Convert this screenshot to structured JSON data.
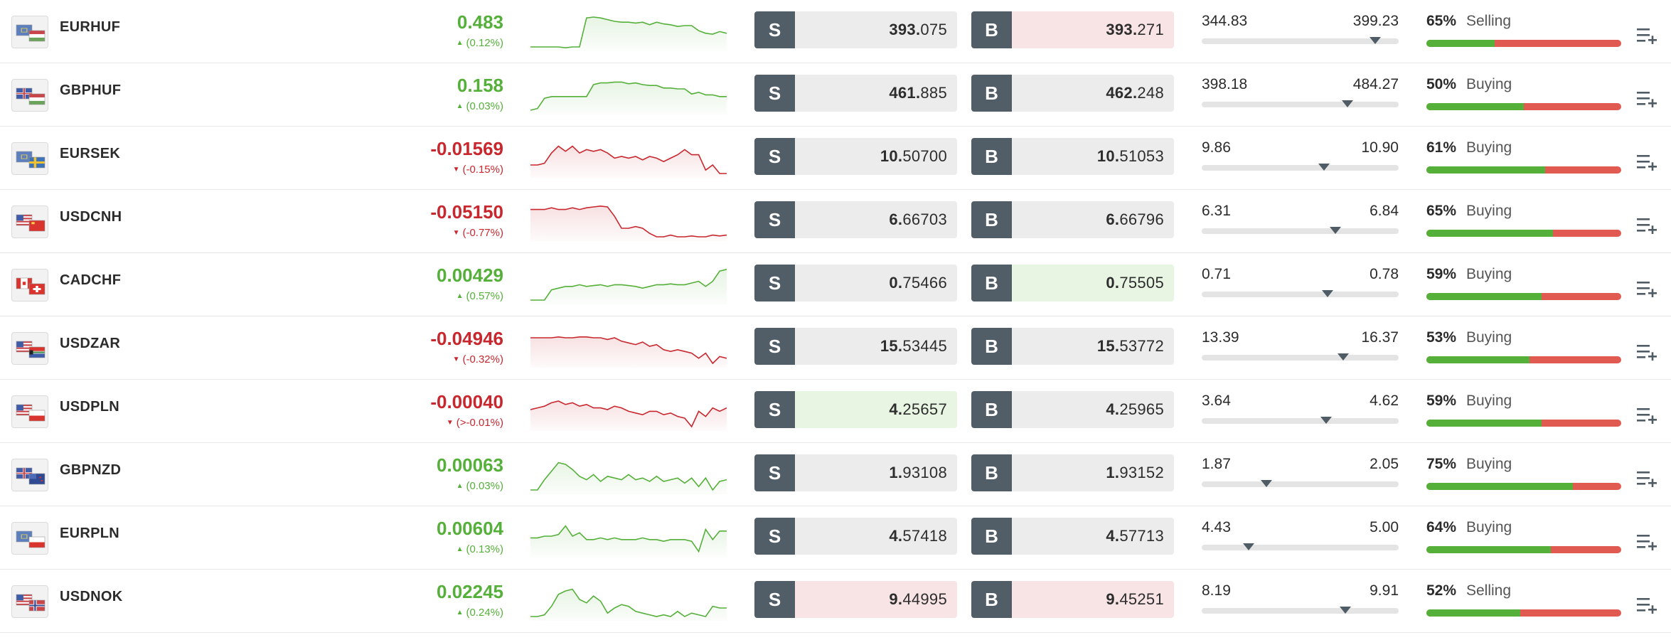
{
  "rows": [
    {
      "symbol": "EURHUF",
      "flags": [
        "eu",
        "hu"
      ],
      "change": "0.483",
      "change_pct": "(0.12%)",
      "direction": "up",
      "spark": [
        40,
        40,
        40,
        40,
        40,
        41,
        40,
        40,
        6,
        5,
        6,
        8,
        10,
        11,
        11,
        12,
        11,
        14,
        11,
        13,
        14,
        16,
        15,
        15,
        21,
        24,
        25,
        22,
        24
      ],
      "sell_label": "S",
      "sell_big": "393.",
      "sell_small": "075",
      "sell_state": "neutral",
      "buy_label": "B",
      "buy_big": "393.",
      "buy_small": "271",
      "buy_state": "down",
      "low": "344.83",
      "high": "399.23",
      "range_pos": 0.88,
      "sentiment_pct": "65%",
      "sentiment_label": "Selling",
      "buying_share": 0.35
    },
    {
      "symbol": "GBPHUF",
      "flags": [
        "gb",
        "hu"
      ],
      "change": "0.158",
      "change_pct": "(0.03%)",
      "direction": "up",
      "spark": [
        40,
        38,
        26,
        24,
        24,
        24,
        24,
        24,
        24,
        10,
        8,
        8,
        7,
        7,
        9,
        8,
        10,
        11,
        11,
        14,
        14,
        15,
        15,
        21,
        19,
        22,
        22,
        24,
        24
      ],
      "sell_label": "S",
      "sell_big": "461.",
      "sell_small": "885",
      "sell_state": "neutral",
      "buy_label": "B",
      "buy_big": "462.",
      "buy_small": "248",
      "buy_state": "neutral",
      "low": "398.18",
      "high": "484.27",
      "range_pos": 0.74,
      "sentiment_pct": "50%",
      "sentiment_label": "Buying",
      "buying_share": 0.5
    },
    {
      "symbol": "EURSEK",
      "flags": [
        "eu",
        "se"
      ],
      "change": "-0.01569",
      "change_pct": "(-0.15%)",
      "direction": "down",
      "spark": [
        30,
        30,
        28,
        16,
        8,
        14,
        8,
        16,
        12,
        14,
        12,
        16,
        22,
        20,
        22,
        20,
        24,
        20,
        22,
        26,
        22,
        18,
        12,
        18,
        18,
        36,
        30,
        40,
        40
      ],
      "sell_label": "S",
      "sell_big": "10.",
      "sell_small": "50700",
      "sell_state": "neutral",
      "buy_label": "B",
      "buy_big": "10.",
      "buy_small": "51053",
      "buy_state": "neutral",
      "low": "9.86",
      "high": "10.90",
      "range_pos": 0.62,
      "sentiment_pct": "61%",
      "sentiment_label": "Buying",
      "buying_share": 0.61
    },
    {
      "symbol": "USDCNH",
      "flags": [
        "us",
        "cn"
      ],
      "change": "-0.05150",
      "change_pct": "(-0.77%)",
      "direction": "down",
      "spark": [
        8,
        8,
        8,
        6,
        8,
        8,
        6,
        8,
        6,
        5,
        4,
        5,
        16,
        30,
        30,
        28,
        30,
        36,
        40,
        40,
        38,
        40,
        40,
        39,
        40,
        40,
        38,
        39,
        38
      ],
      "sell_label": "S",
      "sell_big": "6.",
      "sell_small": "66703",
      "sell_state": "neutral",
      "buy_label": "B",
      "buy_big": "6.",
      "buy_small": "66796",
      "buy_state": "neutral",
      "low": "6.31",
      "high": "6.84",
      "range_pos": 0.68,
      "sentiment_pct": "65%",
      "sentiment_label": "Buying",
      "buying_share": 0.65
    },
    {
      "symbol": "CADCHF",
      "flags": [
        "ca",
        "ch"
      ],
      "change": "0.00429",
      "change_pct": "(0.57%)",
      "direction": "up",
      "spark": [
        40,
        40,
        40,
        28,
        26,
        24,
        24,
        22,
        24,
        23,
        22,
        24,
        22,
        22,
        23,
        24,
        26,
        24,
        22,
        22,
        21,
        22,
        22,
        20,
        18,
        24,
        18,
        6,
        4
      ],
      "sell_label": "S",
      "sell_big": "0.",
      "sell_small": "75466",
      "sell_state": "neutral",
      "buy_label": "B",
      "buy_big": "0.",
      "buy_small": "75505",
      "buy_state": "up",
      "low": "0.71",
      "high": "0.78",
      "range_pos": 0.64,
      "sentiment_pct": "59%",
      "sentiment_label": "Buying",
      "buying_share": 0.59
    },
    {
      "symbol": "USDZAR",
      "flags": [
        "us",
        "za"
      ],
      "change": "-0.04946",
      "change_pct": "(-0.32%)",
      "direction": "down",
      "spark": [
        10,
        10,
        10,
        10,
        9,
        10,
        10,
        9,
        9,
        10,
        10,
        12,
        10,
        14,
        16,
        18,
        15,
        20,
        18,
        24,
        26,
        24,
        26,
        28,
        34,
        28,
        40,
        32,
        34
      ],
      "sell_label": "S",
      "sell_big": "15.",
      "sell_small": "53445",
      "sell_state": "neutral",
      "buy_label": "B",
      "buy_big": "15.",
      "buy_small": "53772",
      "buy_state": "neutral",
      "low": "13.39",
      "high": "16.37",
      "range_pos": 0.72,
      "sentiment_pct": "53%",
      "sentiment_label": "Buying",
      "buying_share": 0.53
    },
    {
      "symbol": "USDPLN",
      "flags": [
        "us",
        "pl"
      ],
      "change": "-0.00040",
      "change_pct": "(>-0.01%)",
      "direction": "down",
      "spark": [
        20,
        18,
        16,
        12,
        10,
        14,
        12,
        16,
        14,
        18,
        18,
        20,
        16,
        18,
        22,
        24,
        26,
        22,
        22,
        26,
        24,
        28,
        30,
        40,
        22,
        28,
        18,
        22,
        18
      ],
      "sell_label": "S",
      "sell_big": "4.",
      "sell_small": "25657",
      "sell_state": "up",
      "buy_label": "B",
      "buy_big": "4.",
      "buy_small": "25965",
      "buy_state": "neutral",
      "low": "3.64",
      "high": "4.62",
      "range_pos": 0.63,
      "sentiment_pct": "59%",
      "sentiment_label": "Buying",
      "buying_share": 0.59
    },
    {
      "symbol": "GBPNZD",
      "flags": [
        "gb",
        "nz"
      ],
      "change": "0.00063",
      "change_pct": "(0.03%)",
      "direction": "up",
      "spark": [
        40,
        40,
        28,
        18,
        8,
        10,
        16,
        24,
        28,
        22,
        30,
        24,
        26,
        28,
        22,
        28,
        26,
        30,
        24,
        30,
        28,
        26,
        32,
        26,
        36,
        26,
        40,
        30,
        28
      ],
      "sell_label": "S",
      "sell_big": "1.",
      "sell_small": "93108",
      "sell_state": "neutral",
      "buy_label": "B",
      "buy_big": "1.",
      "buy_small": "93152",
      "buy_state": "neutral",
      "low": "1.87",
      "high": "2.05",
      "range_pos": 0.33,
      "sentiment_pct": "75%",
      "sentiment_label": "Buying",
      "buying_share": 0.75
    },
    {
      "symbol": "EURPLN",
      "flags": [
        "eu",
        "pl"
      ],
      "change": "0.00604",
      "change_pct": "(0.13%)",
      "direction": "up",
      "spark": [
        22,
        22,
        20,
        20,
        18,
        8,
        20,
        16,
        24,
        24,
        22,
        24,
        22,
        24,
        24,
        24,
        22,
        24,
        24,
        26,
        24,
        24,
        24,
        26,
        38,
        12,
        24,
        14,
        14
      ],
      "sell_label": "S",
      "sell_big": "4.",
      "sell_small": "57418",
      "sell_state": "neutral",
      "buy_label": "B",
      "buy_big": "4.",
      "buy_small": "57713",
      "buy_state": "neutral",
      "low": "4.43",
      "high": "5.00",
      "range_pos": 0.24,
      "sentiment_pct": "64%",
      "sentiment_label": "Buying",
      "buying_share": 0.64
    },
    {
      "symbol": "USDNOK",
      "flags": [
        "us",
        "no"
      ],
      "change": "0.02245",
      "change_pct": "(0.24%)",
      "direction": "up",
      "spark": [
        40,
        40,
        38,
        28,
        14,
        10,
        8,
        20,
        24,
        16,
        22,
        36,
        30,
        26,
        28,
        34,
        36,
        38,
        40,
        38,
        40,
        34,
        40,
        36,
        38,
        40,
        28,
        30,
        30
      ],
      "sell_label": "S",
      "sell_big": "9.",
      "sell_small": "44995",
      "sell_state": "down",
      "buy_label": "B",
      "buy_big": "9.",
      "buy_small": "45251",
      "buy_state": "down",
      "low": "8.19",
      "high": "9.91",
      "range_pos": 0.73,
      "sentiment_pct": "52%",
      "sentiment_label": "Selling",
      "buying_share": 0.48
    }
  ],
  "icons": {
    "menu": "add-to-watchlist-icon",
    "arrow_up": "triangle-up",
    "arrow_down": "triangle-down"
  },
  "colors": {
    "positive": "#55b03a",
    "negative": "#c8272e",
    "button": "#515d67",
    "sentiment_red": "#e05a52"
  }
}
